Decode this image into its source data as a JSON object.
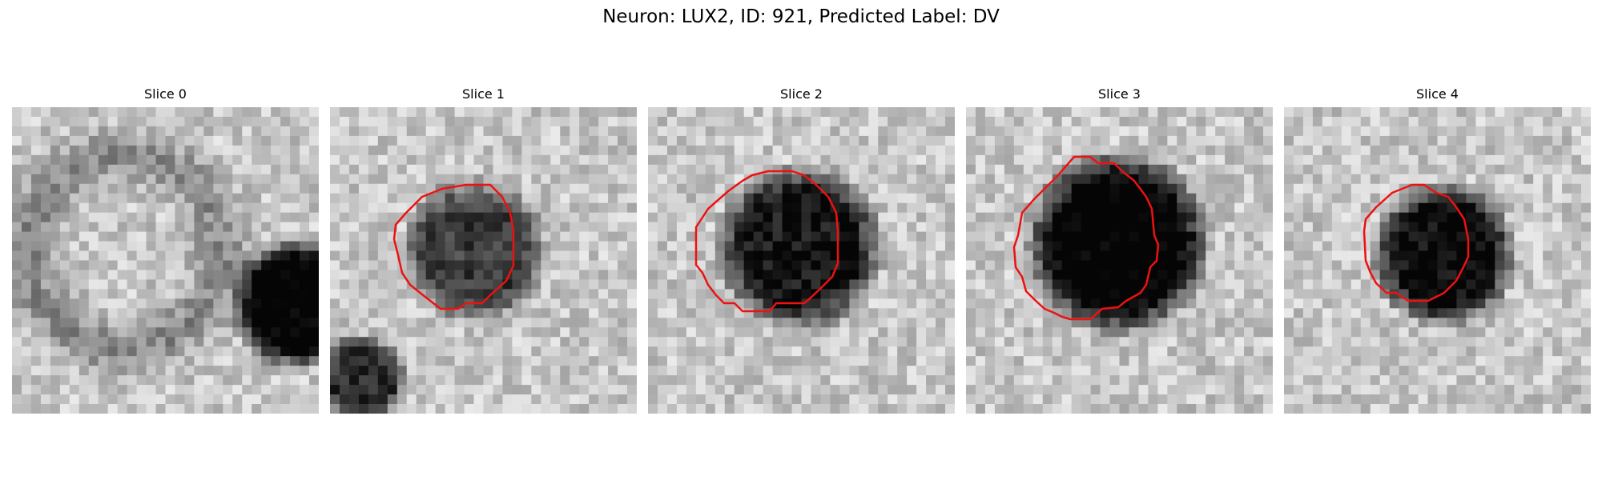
{
  "figure": {
    "title": "Neuron: LUX2, ID: 921, Predicted Label: DV"
  },
  "colors": {
    "background": "#ffffff",
    "contour": "#ee1111",
    "colormap": "grayscale"
  },
  "panels": [
    {
      "title": "Slice 0",
      "has_contour": false
    },
    {
      "title": "Slice 1",
      "has_contour": true
    },
    {
      "title": "Slice 2",
      "has_contour": true
    },
    {
      "title": "Slice 3",
      "has_contour": true
    },
    {
      "title": "Slice 4",
      "has_contour": true
    }
  ]
}
